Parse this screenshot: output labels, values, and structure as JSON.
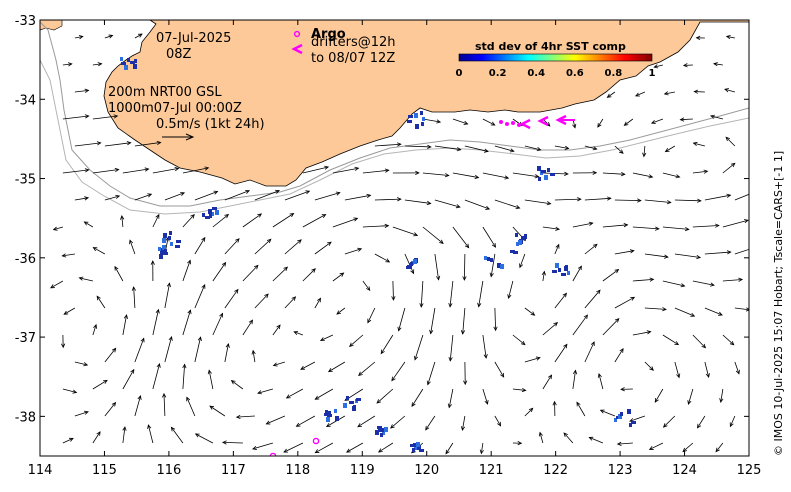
{
  "map": {
    "date": "07-Jul-2025",
    "hour": "08Z",
    "depth_line1": "200m  NRT00 GSL",
    "depth_line2": "1000m07-Jul 00:00Z",
    "scale_label": "0.5m/s (1kt 24h)",
    "argo_label": "Argo",
    "drifters_line1": "drifters@12h",
    "drifters_line2": "to 08/07 12Z",
    "colorbar_title": "std dev of 4hr SST comp",
    "colorbar_ticks": [
      "0",
      "0.2",
      "0.4",
      "0.6",
      "0.8",
      "1"
    ],
    "credit": "© IMOS 10-Jul-2025 15:07 Hobart; Tscale=CARS+[-1 1]",
    "x_ticks": [
      "114",
      "115",
      "116",
      "117",
      "118",
      "119",
      "120",
      "121",
      "122",
      "123",
      "124",
      "125"
    ],
    "y_ticks": [
      "-33",
      "-34",
      "-35",
      "-36",
      "-37",
      "-38"
    ],
    "x_range": [
      114,
      125
    ],
    "y_range": [
      -38.5,
      -33
    ],
    "colors": {
      "land": "#fdc998",
      "ocean": "#ffffff",
      "argo": "#ff00ff",
      "drifters": "#ff00ff",
      "sst_patch": "#1a2fa8",
      "coastline": "#000000",
      "isobath": "#9a9a9a"
    },
    "icons": [
      "argo-circle-icon",
      "drifter-arrow-icon",
      "velocity-arrow-icon"
    ]
  }
}
